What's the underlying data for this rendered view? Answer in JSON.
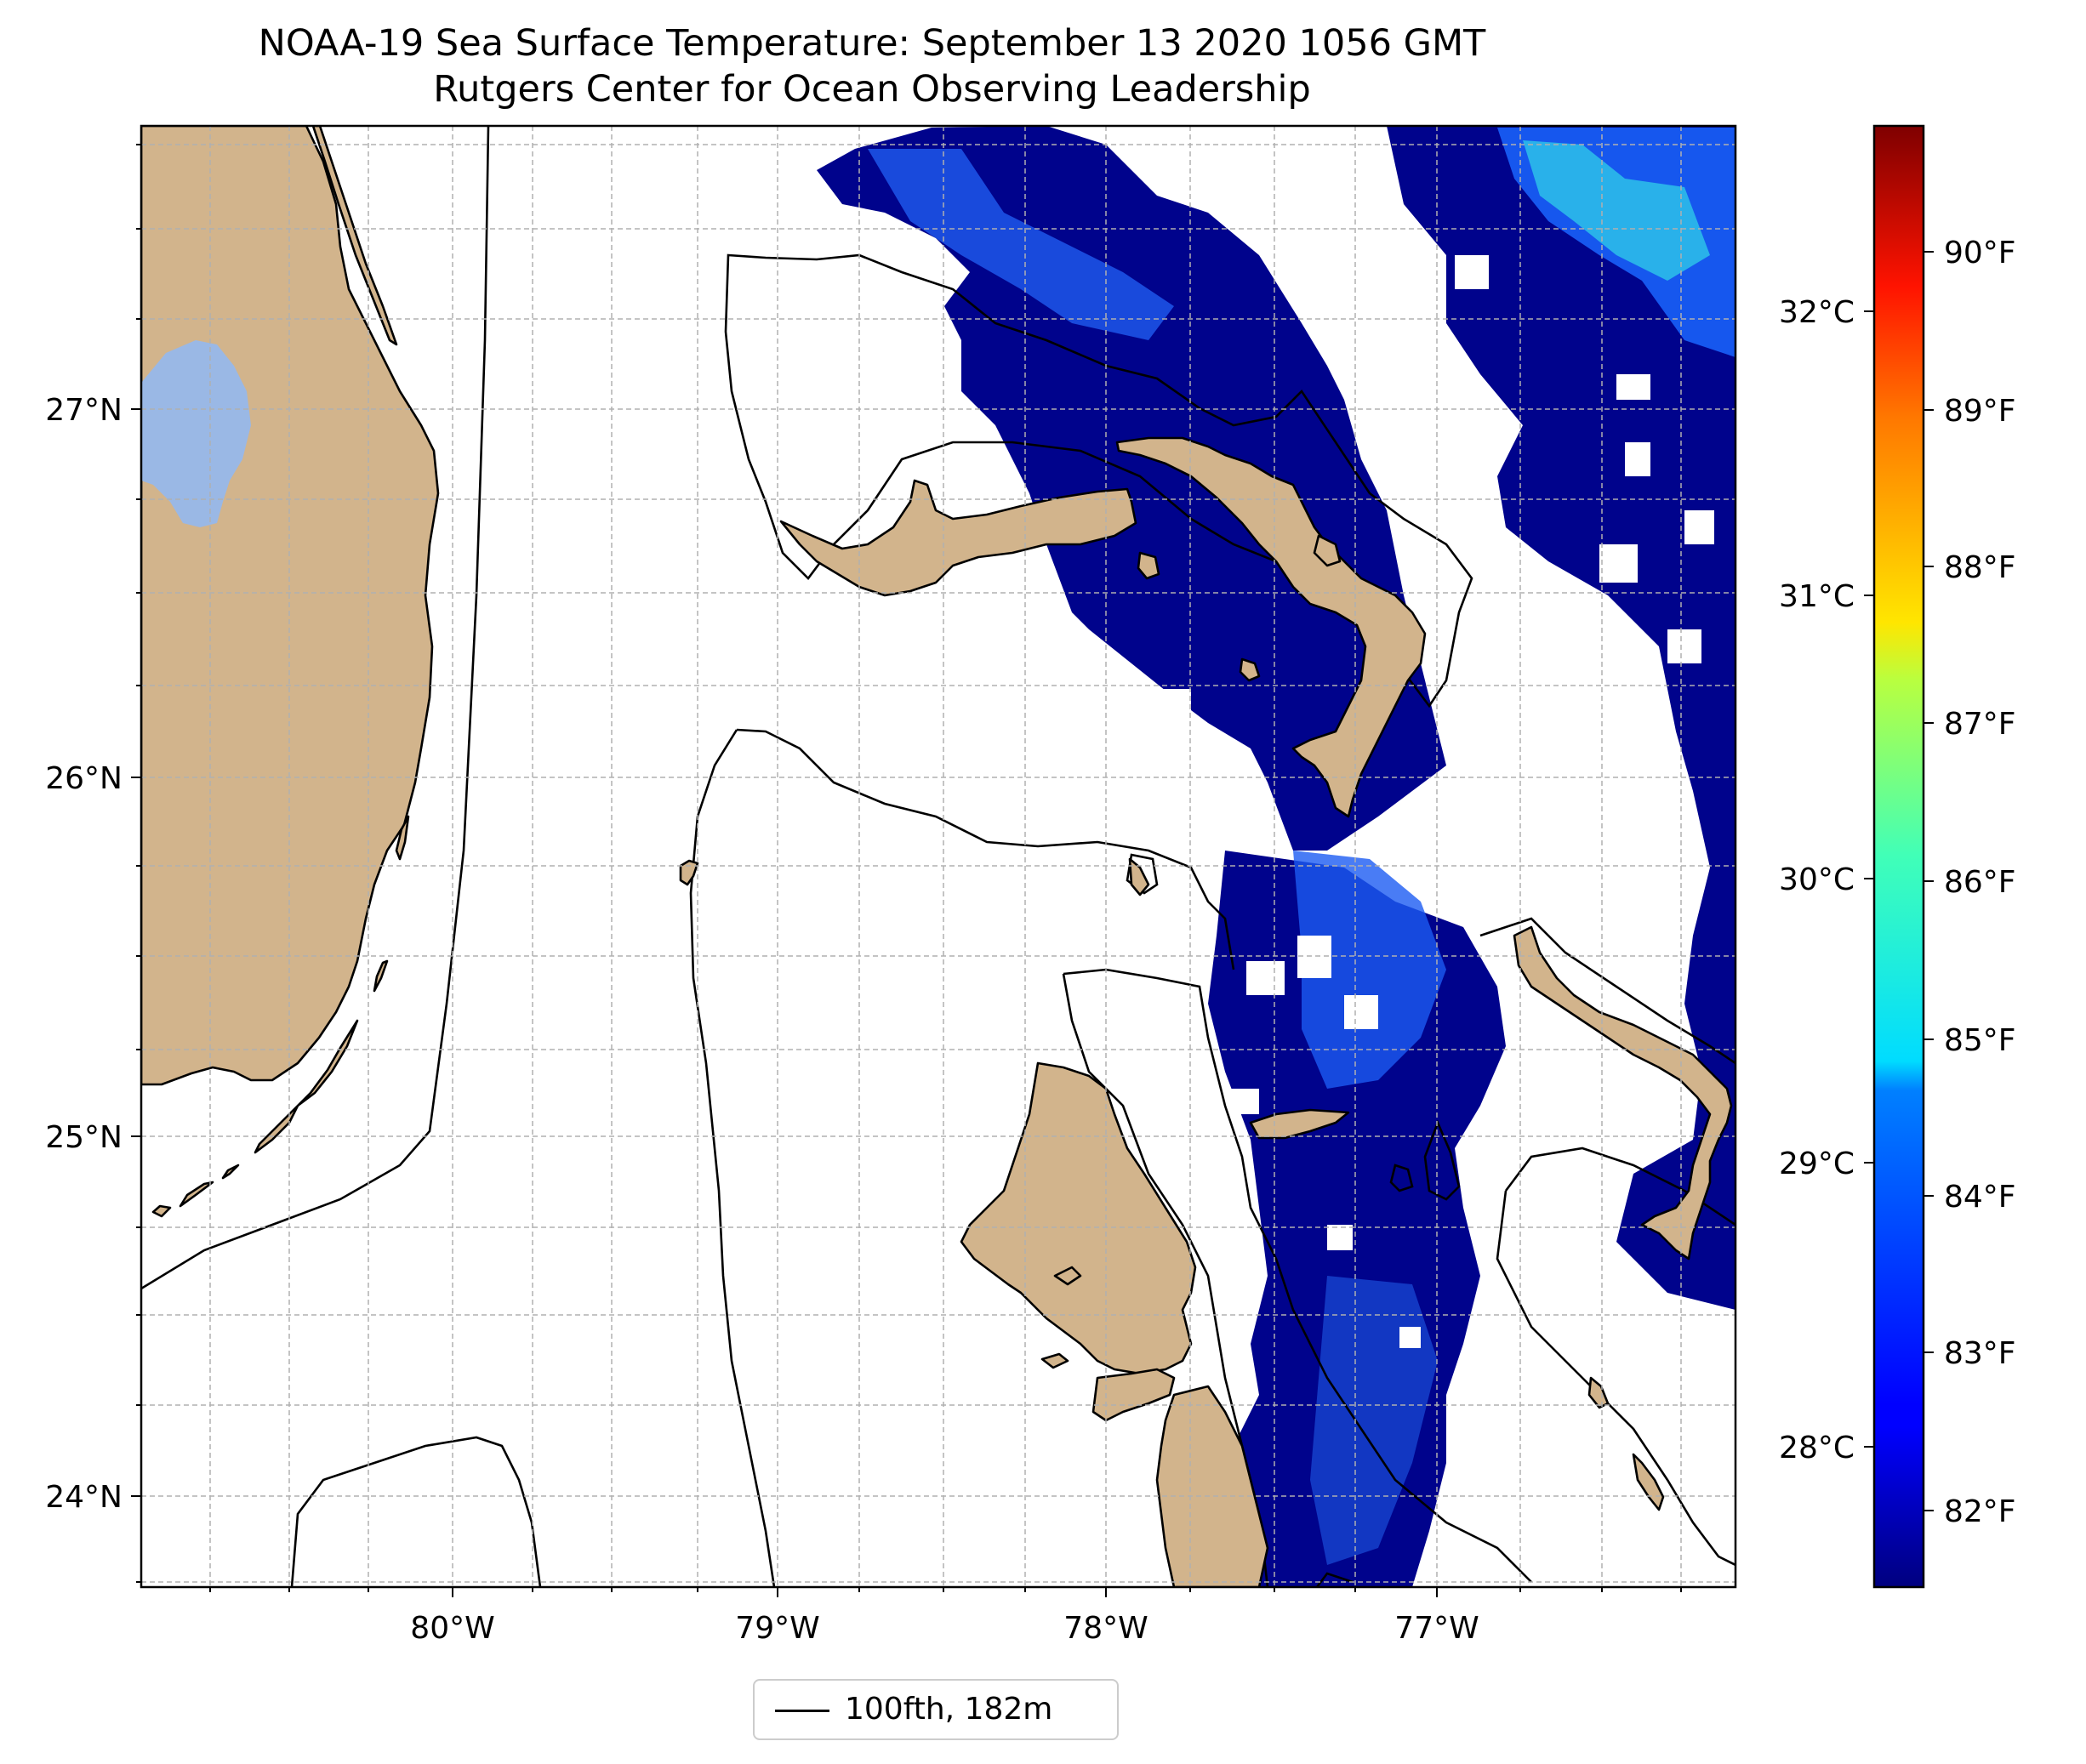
{
  "title": "NOAA-19 Sea Surface Temperature: September 13 2020 1056 GMT",
  "subtitle": "Rutgers Center for Ocean Observing Leadership",
  "map": {
    "lon_ticks": [
      "80°W",
      "79°W",
      "78°W",
      "77°W"
    ],
    "lat_ticks": [
      "27°N",
      "26°N",
      "25°N",
      "24°N"
    ],
    "grid": true,
    "land_color": "#d2b48c",
    "lake_color": "#9ab8e5",
    "contour_label": "100fth, 182m"
  },
  "colorbar": {
    "colormap": "jet",
    "celsius_ticks": [
      "32°C",
      "31°C",
      "30°C",
      "29°C",
      "28°C"
    ],
    "fahrenheit_ticks": [
      "90°F",
      "89°F",
      "88°F",
      "87°F",
      "86°F",
      "85°F",
      "84°F",
      "83°F",
      "82°F"
    ]
  }
}
